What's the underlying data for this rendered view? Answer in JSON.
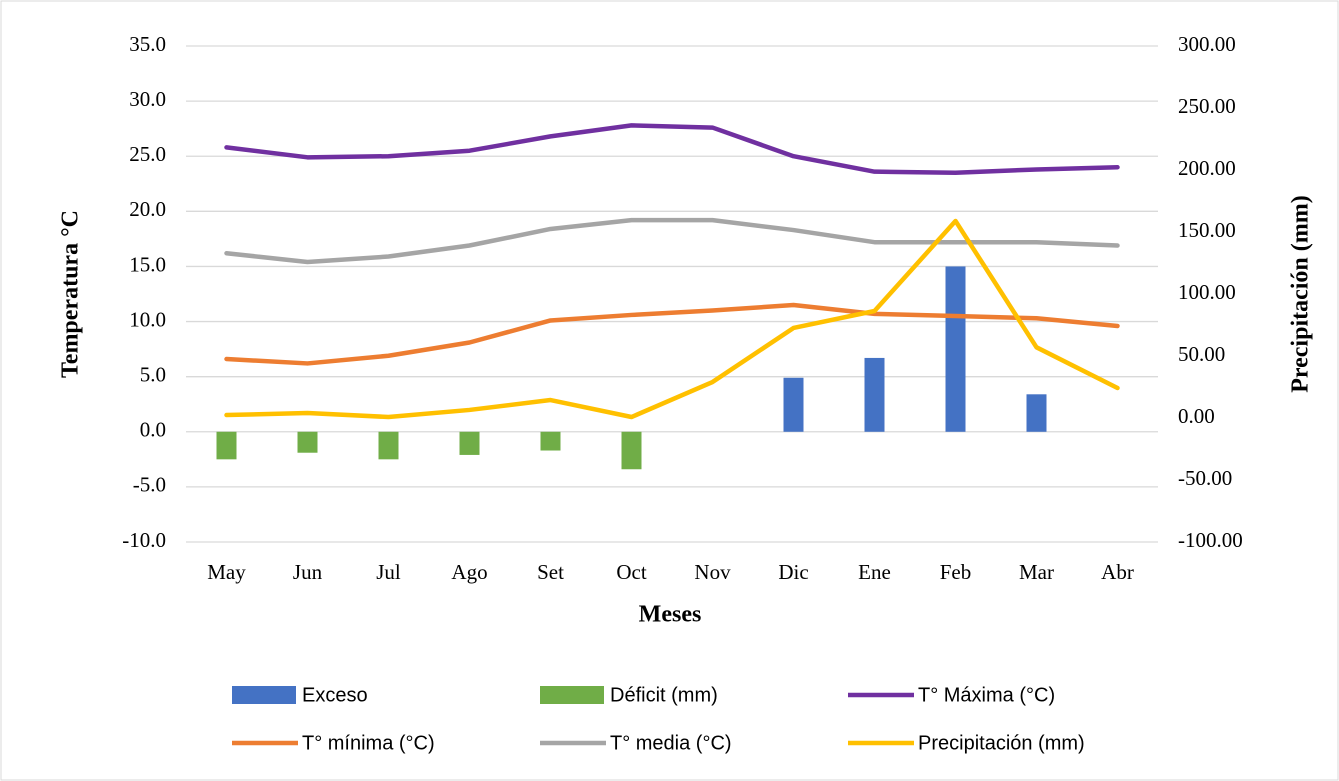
{
  "chart_data": {
    "type": "combo",
    "x_label": "Meses",
    "y_label": "Temperatura  °C",
    "y2_label": "Precipitación (mm)",
    "categories": [
      "May",
      "Jun",
      "Jul",
      "Ago",
      "Set",
      "Oct",
      "Nov",
      "Dic",
      "Ene",
      "Feb",
      "Mar",
      "Abr"
    ],
    "ylim": [
      -10,
      35
    ],
    "yticks": [
      {
        "value": -10,
        "label": "-10.0"
      },
      {
        "value": -5,
        "label": "-5.0"
      },
      {
        "value": 0,
        "label": "0.0"
      },
      {
        "value": 5,
        "label": "5.0"
      },
      {
        "value": 10,
        "label": "10.0"
      },
      {
        "value": 15,
        "label": "15.0"
      },
      {
        "value": 20,
        "label": "20.0"
      },
      {
        "value": 25,
        "label": "25.0"
      },
      {
        "value": 30,
        "label": "30.0"
      },
      {
        "value": 35,
        "label": "35.0"
      }
    ],
    "y2lim": [
      -100,
      300
    ],
    "y2ticks": [
      {
        "value": -100,
        "label": "-100.00"
      },
      {
        "value": -50,
        "label": "-50.00"
      },
      {
        "value": 0,
        "label": "0.00"
      },
      {
        "value": 50,
        "label": "50.00"
      },
      {
        "value": 100,
        "label": "100.00"
      },
      {
        "value": 150,
        "label": "150.00"
      },
      {
        "value": 200,
        "label": "200.00"
      },
      {
        "value": 250,
        "label": "250.00"
      },
      {
        "value": 300,
        "label": "300.00"
      }
    ],
    "grid": true,
    "legend": "bottom",
    "series": [
      {
        "name": "Exceso",
        "type": "bar",
        "color": "#4472c4",
        "values": [
          null,
          null,
          null,
          null,
          null,
          null,
          null,
          4.9,
          6.7,
          15.0,
          3.4,
          null
        ]
      },
      {
        "name": "Déficit (mm)",
        "type": "bar",
        "color": "#70ad47",
        "values": [
          -2.5,
          -1.9,
          -2.5,
          -2.1,
          -1.7,
          -3.4,
          null,
          null,
          null,
          null,
          null,
          null
        ]
      },
      {
        "name": "T° Máxima (°C)",
        "type": "line",
        "color": "#7030a0",
        "values": [
          25.8,
          24.9,
          25.0,
          25.5,
          26.8,
          27.8,
          27.6,
          25.0,
          23.6,
          23.5,
          23.8,
          24.0
        ]
      },
      {
        "name": "T° mínima (°C)",
        "type": "line",
        "color": "#ed7d31",
        "values": [
          6.6,
          6.2,
          6.9,
          8.1,
          10.1,
          10.6,
          11.0,
          11.5,
          10.7,
          10.5,
          10.3,
          9.6
        ]
      },
      {
        "name": "T° media (°C)",
        "type": "line",
        "color": "#a5a5a5",
        "values": [
          16.2,
          15.4,
          15.9,
          16.9,
          18.4,
          19.2,
          19.2,
          18.3,
          17.2,
          17.2,
          17.2,
          16.9
        ]
      },
      {
        "name": "Precipitación (mm)",
        "type": "line",
        "axis": "y2",
        "color": "#ffc000",
        "values": [
          2.4,
          4.0,
          0.8,
          6.5,
          14.5,
          0.8,
          29.0,
          72.6,
          86.3,
          158.9,
          57.0,
          24.2
        ]
      }
    ]
  }
}
